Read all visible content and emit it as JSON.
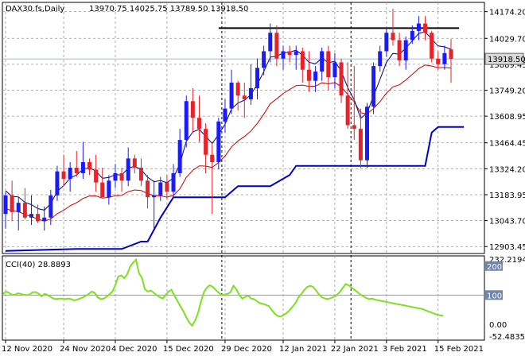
{
  "header": {
    "symbol": "DAX30.fs,Daily",
    "ohlc": "13970.75 14025.75 13789.50 13918.50"
  },
  "price_panel": {
    "y_ticks": [
      "14174.20",
      "14029.70",
      "13889.45",
      "13749.20",
      "13608.95",
      "13464.45",
      "13324.20",
      "13183.95",
      "13043.70",
      "12903.45"
    ],
    "current_price_label": "13918.50"
  },
  "cci_panel": {
    "label": "CCI(40) 28.8893",
    "y_ticks": [
      "232.2194",
      "200",
      "100",
      "0.00",
      "-52.4835"
    ]
  },
  "x_axis": {
    "date_labels": [
      "12 Nov 2020",
      "24 Nov 2020",
      "4 Dec 2020",
      "15 Dec 2020",
      "29 Dec 2020",
      "12 Jan 2021",
      "22 Jan 2021",
      "3 Feb 2021",
      "15 Feb 2021"
    ]
  },
  "colors": {
    "bull": "#1a1aff",
    "bear": "#e8222a",
    "ema_fast": "#000080",
    "ema_slow": "#cc0000",
    "support_line": "#0000cc",
    "resistance_line": "#000000",
    "cci_line": "#7ee01e",
    "grid": "#9a9a9a",
    "price_box": "#d9d9d9",
    "cci_tag": "#6f86a8"
  },
  "chart_data": [
    {
      "type": "candlestick",
      "title": "DAX30.fs,Daily",
      "x": [
        "12 Nov 2020",
        "24 Nov 2020",
        "4 Dec 2020",
        "15 Dec 2020",
        "29 Dec 2020",
        "12 Jan 2021",
        "22 Jan 2021",
        "3 Feb 2021",
        "15 Feb 2021"
      ],
      "ylim": [
        12870,
        14220
      ],
      "candles": [
        [
          13080,
          13200,
          13000,
          13180
        ],
        [
          13180,
          13260,
          13040,
          13090
        ],
        [
          13090,
          13170,
          12990,
          13140
        ],
        [
          13140,
          13220,
          13050,
          13060
        ],
        [
          13060,
          13180,
          13020,
          13080
        ],
        [
          13080,
          13130,
          13030,
          13040
        ],
        [
          13040,
          13120,
          12990,
          13060
        ],
        [
          13060,
          13210,
          13020,
          13180
        ],
        [
          13180,
          13340,
          13150,
          13310
        ],
        [
          13310,
          13400,
          13230,
          13270
        ],
        [
          13270,
          13360,
          13200,
          13330
        ],
        [
          13330,
          13420,
          13280,
          13300
        ],
        [
          13300,
          13470,
          13270,
          13360
        ],
        [
          13360,
          13380,
          13290,
          13320
        ],
        [
          13320,
          13400,
          13200,
          13250
        ],
        [
          13250,
          13330,
          13180,
          13170
        ],
        [
          13170,
          13290,
          13130,
          13260
        ],
        [
          13260,
          13350,
          13220,
          13300
        ],
        [
          13300,
          13330,
          13200,
          13260
        ],
        [
          13260,
          13440,
          13230,
          13380
        ],
        [
          13380,
          13400,
          13300,
          13330
        ],
        [
          13330,
          13380,
          13230,
          13260
        ],
        [
          13260,
          13290,
          13110,
          13170
        ],
        [
          13170,
          13260,
          13000,
          13180
        ],
        [
          13180,
          13280,
          13150,
          13250
        ],
        [
          13250,
          13290,
          13160,
          13200
        ],
        [
          13200,
          13350,
          13170,
          13300
        ],
        [
          13300,
          13540,
          13280,
          13480
        ],
        [
          13480,
          13720,
          13440,
          13690
        ],
        [
          13690,
          13760,
          13520,
          13600
        ],
        [
          13600,
          13720,
          13470,
          13540
        ],
        [
          13540,
          13570,
          13300,
          13400
        ],
        [
          13400,
          13460,
          13080,
          13360
        ],
        [
          13360,
          13600,
          13320,
          13580
        ],
        [
          13580,
          13700,
          13520,
          13650
        ],
        [
          13650,
          13860,
          13620,
          13790
        ],
        [
          13790,
          13800,
          13640,
          13720
        ],
        [
          13720,
          13790,
          13600,
          13700
        ],
        [
          13700,
          13890,
          13670,
          13760
        ],
        [
          13760,
          13920,
          13700,
          13870
        ],
        [
          13870,
          13990,
          13830,
          13960
        ],
        [
          13960,
          14110,
          13900,
          14060
        ],
        [
          14060,
          14100,
          13880,
          13920
        ],
        [
          13920,
          13990,
          13860,
          13960
        ],
        [
          13960,
          13990,
          13900,
          13940
        ],
        [
          13940,
          13990,
          13860,
          13960
        ],
        [
          13960,
          13980,
          13790,
          13860
        ],
        [
          13860,
          13960,
          13740,
          13800
        ],
        [
          13800,
          13880,
          13740,
          13850
        ],
        [
          13850,
          13980,
          13800,
          13960
        ],
        [
          13960,
          13990,
          13750,
          13820
        ],
        [
          13820,
          13950,
          13760,
          13900
        ],
        [
          13900,
          13920,
          13680,
          13720
        ],
        [
          13720,
          13900,
          13540,
          13560
        ],
        [
          13560,
          13880,
          13480,
          13540
        ],
        [
          13540,
          13650,
          13330,
          13370
        ],
        [
          13370,
          13680,
          13330,
          13660
        ],
        [
          13660,
          13900,
          13620,
          13880
        ],
        [
          13880,
          13990,
          13850,
          13960
        ],
        [
          13960,
          14090,
          13930,
          14060
        ],
        [
          14060,
          14190,
          13990,
          14020
        ],
        [
          14020,
          14060,
          13880,
          13910
        ],
        [
          13910,
          14040,
          13860,
          14020
        ],
        [
          14020,
          14100,
          14000,
          14070
        ],
        [
          14070,
          14150,
          14020,
          14110
        ],
        [
          14110,
          14150,
          14020,
          14060
        ],
        [
          14060,
          14070,
          13900,
          13920
        ],
        [
          13920,
          13960,
          13860,
          13890
        ],
        [
          13890,
          13990,
          13860,
          13950
        ],
        [
          13970,
          14025.75,
          13789.5,
          13918.5
        ]
      ],
      "overlays": [
        {
          "name": "ema_fast",
          "color": "#000080"
        },
        {
          "name": "ema_slow",
          "color": "#cc0000"
        },
        {
          "name": "support",
          "color": "#0000cc"
        },
        {
          "name": "resistance",
          "color": "#000000",
          "value": 14085
        }
      ]
    },
    {
      "type": "line",
      "title": "CCI(40) 28.8893",
      "ylim": [
        -52.4835,
        232.2194
      ],
      "values": [
        104,
        112,
        107,
        101,
        101,
        106,
        104,
        101,
        100,
        102,
        110,
        110,
        105,
        96,
        104,
        101,
        94,
        88,
        86,
        88,
        88,
        86,
        88,
        86,
        82,
        84,
        88,
        92,
        98,
        104,
        112,
        108,
        92,
        86,
        88,
        94,
        103,
        112,
        135,
        164,
        168,
        158,
        172,
        198,
        212,
        222,
        175,
        160,
        120,
        112,
        116,
        108,
        100,
        93,
        88,
        100,
        112,
        118,
        98,
        80,
        62,
        45,
        24,
        6,
        -5,
        12,
        38,
        78,
        110,
        126,
        134,
        128,
        118,
        108,
        100,
        102,
        104,
        110,
        132,
        120,
        100,
        88,
        94,
        98,
        88,
        86,
        78,
        72,
        70,
        66,
        62,
        48,
        36,
        28,
        26,
        32,
        38,
        48,
        60,
        72,
        92,
        104,
        118,
        128,
        132,
        128,
        116,
        102,
        92,
        88,
        86,
        90,
        94,
        100,
        110,
        124,
        138,
        134,
        126,
        118,
        110,
        102,
        96,
        90,
        86,
        88,
        84,
        82,
        80,
        78,
        76,
        74,
        72,
        70,
        68,
        66,
        64,
        62,
        60,
        58,
        56,
        54,
        52,
        48,
        44,
        40,
        36,
        32,
        30,
        28.9
      ]
    }
  ]
}
